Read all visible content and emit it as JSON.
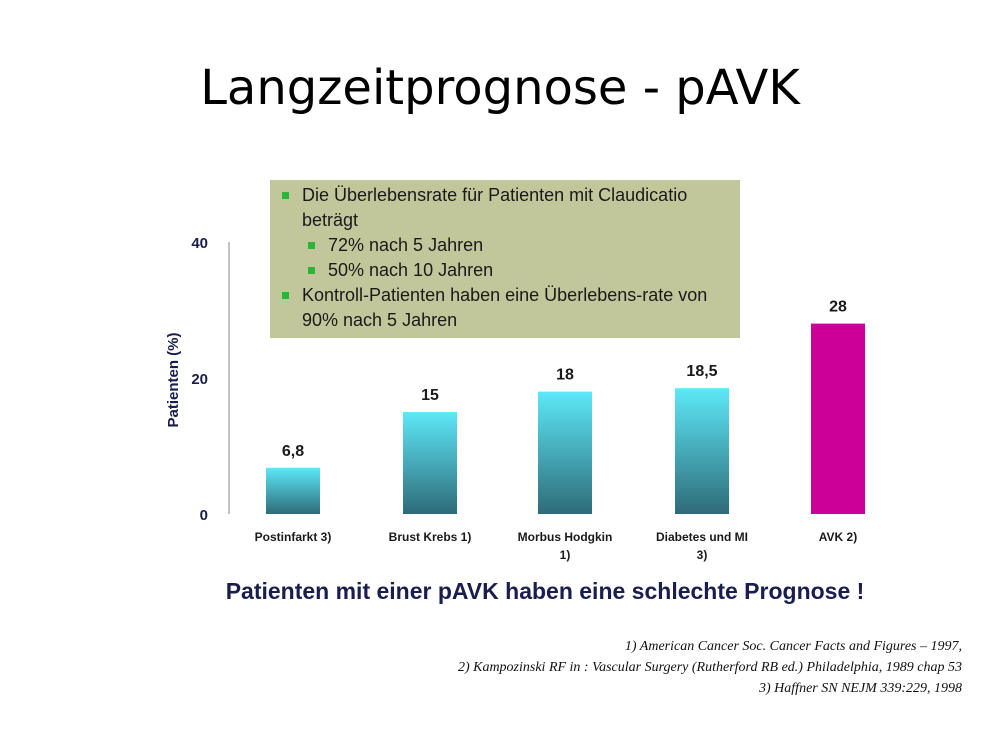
{
  "slide": {
    "title": "Langzeitprognose - pAVK",
    "conclusion": "Patienten mit einer pAVK haben eine schlechte Prognose !"
  },
  "callout": {
    "item1": "Die Überlebensrate für Patienten mit Claudicatio beträgt",
    "sub1": "72% nach 5 Jahren",
    "sub2": "50% nach 10 Jahren",
    "item2": "Kontroll-Patienten haben eine Überlebens-rate von 90% nach 5 Jahren"
  },
  "references": [
    "1) American Cancer Soc. Cancer Facts and Figures – 1997,",
    "2) Kampozinski RF in : Vascular Surgery (Rutherford RB ed.) Philadelphia, 1989 chap 53",
    "3) Haffner SN NEJM 339:229, 1998"
  ],
  "colors": {
    "bar_gradient_top": "#5de8f8",
    "bar_gradient_bottom": "#2f6b78",
    "highlight_bar": "#cc0099",
    "callout_bg": "#c2c79b",
    "bullet": "#2db53a"
  },
  "chart_data": {
    "type": "bar",
    "ylabel": "Patienten (%)",
    "ylim": [
      0,
      40
    ],
    "yticks": [
      "0",
      "20",
      "40"
    ],
    "categories": [
      [
        "Postinfarkt 3)"
      ],
      [
        "Brust Krebs 1)"
      ],
      [
        "Morbus Hodgkin",
        "1)"
      ],
      [
        "Diabetes und MI",
        "3)"
      ],
      [
        "AVK 2)"
      ]
    ],
    "values": [
      6.8,
      15,
      18,
      18.5,
      28
    ],
    "value_labels": [
      "6,8",
      "15",
      "18",
      "18,5",
      "28"
    ],
    "highlight_index": 4,
    "grid": false
  }
}
